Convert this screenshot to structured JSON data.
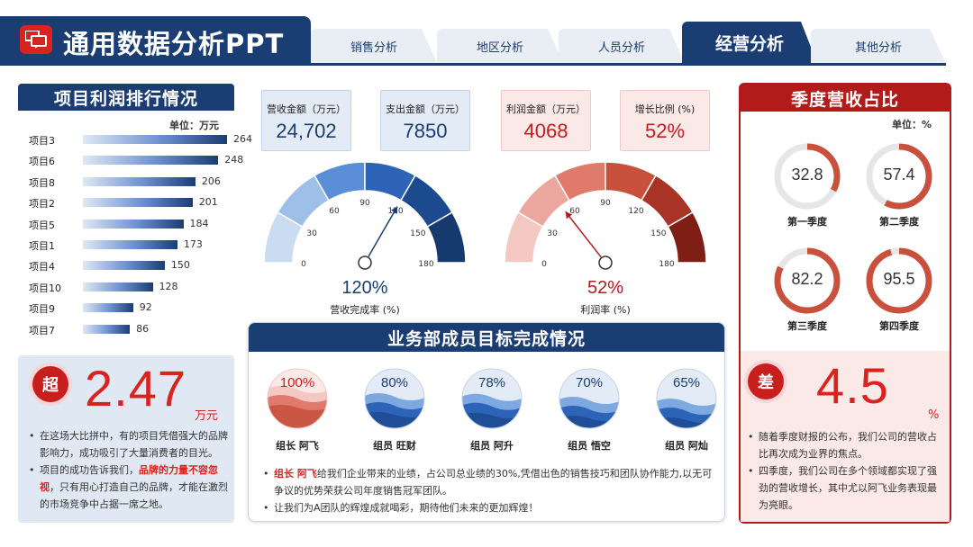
{
  "header": {
    "title": "通用数据分析PPT",
    "tabs": [
      {
        "label": "销售分析",
        "active": false
      },
      {
        "label": "地区分析",
        "active": false
      },
      {
        "label": "人员分析",
        "active": false
      },
      {
        "label": "经营分析",
        "active": true
      },
      {
        "label": "其他分析",
        "active": false
      }
    ],
    "icon": "chat-bubbles-icon"
  },
  "left": {
    "title": "项目利润排行情况",
    "unit": "单位：万元",
    "chart_data": {
      "type": "bar",
      "orientation": "horizontal",
      "categories": [
        "项目3",
        "项目6",
        "项目8",
        "项目2",
        "项目5",
        "项目1",
        "项目4",
        "项目10",
        "项目9",
        "项目7"
      ],
      "values": [
        264,
        248,
        206,
        201,
        184,
        173,
        150,
        128,
        92,
        86
      ]
    },
    "badge": "超",
    "big_number": "2.47",
    "big_unit": "万元",
    "bullet1": "在这场大比拼中，有的项目凭借强大的品牌影响力，成功吸引了大量消费者的目光。",
    "bullet2_pre": "项目的成功告诉我们，",
    "bullet2_hl": "品牌的力量不容忽视",
    "bullet2_post": "，只有用心打造自己的品牌，才能在激烈的市场竞争中占据一席之地。"
  },
  "kpis": [
    {
      "label": "营收金额（万元）",
      "value": "24,702",
      "theme": "blue"
    },
    {
      "label": "支出金额（万元）",
      "value": "7850",
      "theme": "blue"
    },
    {
      "label": "利润金额（万元）",
      "value": "4068",
      "theme": "red"
    },
    {
      "label": "增长比例 (%)",
      "value": "52%",
      "theme": "red"
    }
  ],
  "gauges": [
    {
      "value_text": "120%",
      "caption": "营收完成率 (%)",
      "value": 120,
      "max": 180,
      "ticks": [
        "0",
        "30",
        "60",
        "90",
        "120",
        "150",
        "180"
      ],
      "colors": [
        "#c9dcf2",
        "#9ec0e8",
        "#5a8ed6",
        "#2e64b8",
        "#1c4a8f",
        "#163a6e"
      ],
      "text_color": "#1a3d73"
    },
    {
      "value_text": "52%",
      "caption": "利润率 (%)",
      "value": 52,
      "max": 180,
      "ticks": [
        "0",
        "30",
        "60",
        "90",
        "120",
        "150",
        "180"
      ],
      "colors": [
        "#f3c8c2",
        "#eba79e",
        "#e07a6c",
        "#c8503d",
        "#a93324",
        "#7e1e15"
      ],
      "text_color": "#b31b1b"
    }
  ],
  "center": {
    "title": "业务部成员目标完成情况",
    "members": [
      {
        "name": "组长 阿飞",
        "pct": "100%",
        "fill": 1.0,
        "theme": "red"
      },
      {
        "name": "组员 旺财",
        "pct": "80%",
        "fill": 0.8,
        "theme": "blue"
      },
      {
        "name": "组员 阿升",
        "pct": "78%",
        "fill": 0.78,
        "theme": "blue"
      },
      {
        "name": "组员 悟空",
        "pct": "70%",
        "fill": 0.7,
        "theme": "blue"
      },
      {
        "name": "组员 阿灿",
        "pct": "65%",
        "fill": 0.65,
        "theme": "blue"
      }
    ],
    "bullet1_hl": "组长 阿飞",
    "bullet1_text": "给我们企业带来的业绩，占公司总业绩的30%,凭借出色的销售技巧和团队协作能力,以无可争议的优势荣获公司年度销售冠军团队。",
    "bullet2": "让我们为A团队的辉煌成就喝彩，期待他们未来的更加辉煌！"
  },
  "right": {
    "title": "季度营收占比",
    "unit": "单位：%",
    "quarters": [
      {
        "label": "第一季度",
        "value": "32.8",
        "ratio": 0.328
      },
      {
        "label": "第二季度",
        "value": "57.4",
        "ratio": 0.574
      },
      {
        "label": "第三季度",
        "value": "82.2",
        "ratio": 0.822
      },
      {
        "label": "第四季度",
        "value": "95.5",
        "ratio": 0.955
      }
    ],
    "badge": "差",
    "big_number": "4.5",
    "big_unit": "%",
    "bullet1": "随着季度财报的公布，我们公司的营收占比再次成为业界的焦点。",
    "bullet2": "四季度，我们公司在多个领域都实现了强劲的营收增长，其中尤以阿飞业务表现最为亮眼。"
  },
  "colors": {
    "navy": "#1a3d73",
    "red": "#b31b1b",
    "accent_red": "#d8231f"
  }
}
